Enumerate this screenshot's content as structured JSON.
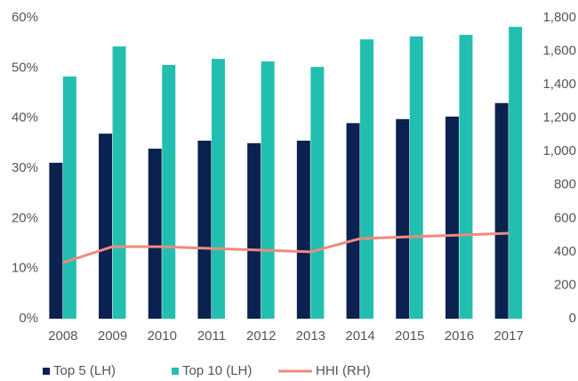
{
  "chart_data": {
    "type": "bar",
    "categories": [
      "2008",
      "2009",
      "2010",
      "2011",
      "2012",
      "2013",
      "2014",
      "2015",
      "2016",
      "2017"
    ],
    "series": [
      {
        "name": "Top 5 (LH)",
        "type": "bar",
        "color": "#0b2150",
        "values": [
          31.1,
          36.9,
          33.9,
          35.5,
          35,
          35.5,
          39,
          39.8,
          40.3,
          43
        ]
      },
      {
        "name": "Top 10 (LH)",
        "type": "bar",
        "color": "#22bfb0",
        "values": [
          48.3,
          54.3,
          50.6,
          51.8,
          51.3,
          50.2,
          55.7,
          56.3,
          56.6,
          58.2
        ]
      },
      {
        "name": "HHI (RH)",
        "type": "line",
        "axis": "y2",
        "color": "#f08a7e",
        "values": [
          335,
          431,
          431,
          420,
          410,
          400,
          479,
          490,
          500,
          511
        ]
      }
    ],
    "ylim": [
      0,
      60
    ],
    "yticks": [
      {
        "value": 0,
        "label": "0%"
      },
      {
        "value": 10,
        "label": "10%"
      },
      {
        "value": 20,
        "label": "20%"
      },
      {
        "value": 30,
        "label": "30%"
      },
      {
        "value": 40,
        "label": "40%"
      },
      {
        "value": 50,
        "label": "50%"
      },
      {
        "value": 60,
        "label": "60%"
      }
    ],
    "y2lim": [
      0,
      1800
    ],
    "y2ticks": [
      0,
      200,
      400,
      600,
      800,
      {
        "value": 1000,
        "label": "1,000"
      },
      {
        "value": 1200,
        "label": "1,200"
      },
      {
        "value": 1400,
        "label": "1,400"
      },
      {
        "value": 1600,
        "label": "1,600"
      },
      {
        "value": 1800,
        "label": "1,800"
      }
    ],
    "legend": "bottom"
  }
}
